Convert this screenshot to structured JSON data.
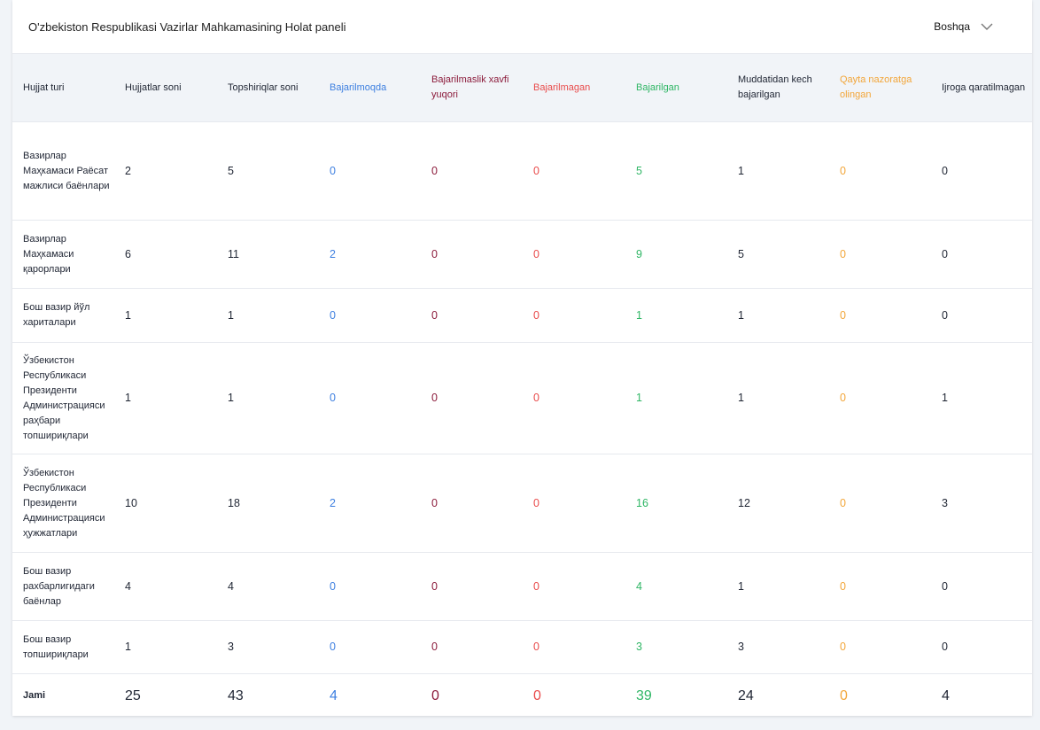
{
  "header": {
    "title": "O'zbekiston Respublikasi Vazirlar Mahkamasining Holat paneli",
    "more_label": "Boshqa",
    "more_icon": "chevron-down-icon"
  },
  "colors": {
    "blue": "#3d7fe0",
    "dark_red": "#8c1c3c",
    "red": "#e94b4b",
    "green": "#2fb665",
    "orange": "#f2a63a"
  },
  "table": {
    "columns": [
      {
        "label": "Hujjat turi",
        "color": ""
      },
      {
        "label": "Hujjatlar soni",
        "color": ""
      },
      {
        "label": "Topshiriqlar soni",
        "color": ""
      },
      {
        "label": "Bajarilmoqda",
        "color": "blue"
      },
      {
        "label": "Bajarilmaslik xavfi yuqori",
        "color": "dred"
      },
      {
        "label": "Bajarilmagan",
        "color": "red"
      },
      {
        "label": "Bajarilgan",
        "color": "green"
      },
      {
        "label": "Muddatidan kech bajarilgan",
        "color": ""
      },
      {
        "label": "Qayta nazoratga olingan",
        "color": "orange"
      },
      {
        "label": "Ijroga qaratilmagan",
        "color": ""
      }
    ],
    "rows": [
      [
        "Вазирлар Маҳкамаси Раёсат мажлиси баёнлари",
        "2",
        "5",
        "0",
        "0",
        "0",
        "5",
        "1",
        "0",
        "0"
      ],
      [
        "Вазирлар Маҳкамаси қарорлари",
        "6",
        "11",
        "2",
        "0",
        "0",
        "9",
        "5",
        "0",
        "0"
      ],
      [
        "Бош вазир йўл хариталари",
        "1",
        "1",
        "0",
        "0",
        "0",
        "1",
        "1",
        "0",
        "0"
      ],
      [
        "Ўзбекистон Республикаси Президенти Администрацияси раҳбари топшириқлари",
        "1",
        "1",
        "0",
        "0",
        "0",
        "1",
        "1",
        "0",
        "1"
      ],
      [
        "Ўзбекистон Республикаси Президенти Администрацияси ҳужжатлари",
        "10",
        "18",
        "2",
        "0",
        "0",
        "16",
        "12",
        "0",
        "3"
      ],
      [
        "Бош вазир рахбарлигидаги баёнлар",
        "4",
        "4",
        "0",
        "0",
        "0",
        "4",
        "1",
        "0",
        "0"
      ],
      [
        "Бош вазир топшириқлари",
        "1",
        "3",
        "0",
        "0",
        "0",
        "3",
        "3",
        "0",
        "0"
      ]
    ],
    "total": [
      "Jami",
      "25",
      "43",
      "4",
      "0",
      "0",
      "39",
      "24",
      "0",
      "4"
    ]
  }
}
